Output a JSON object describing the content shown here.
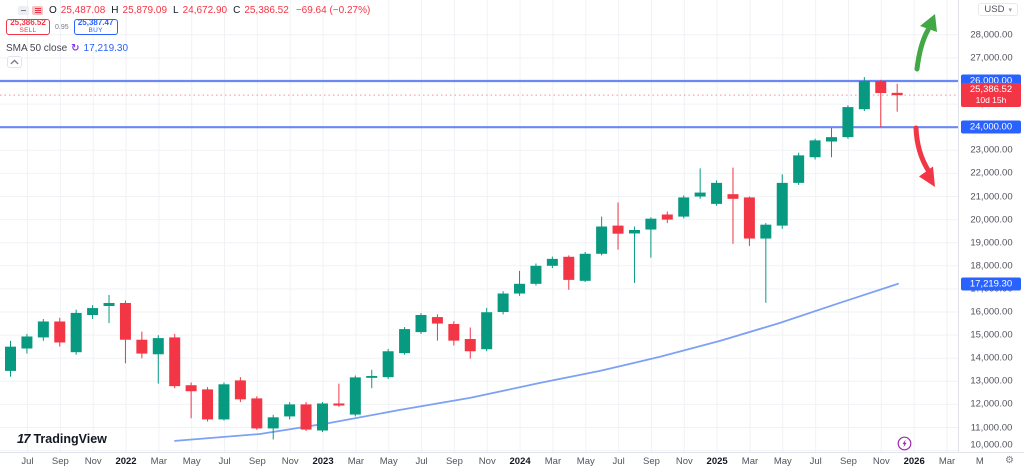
{
  "legend": {
    "ohlc": {
      "o_label": "O",
      "o": "25,487.08",
      "h_label": "H",
      "h": "25,879.09",
      "l_label": "L",
      "l": "24,672.90",
      "c_label": "C",
      "c": "25,386.52",
      "change": "−69.64 (−0.27%)"
    },
    "order_panel": {
      "sell_price": "25,386.52",
      "sell_label": "SELL",
      "spread": "0.95",
      "buy_price": "25,387.47",
      "buy_label": "BUY"
    },
    "indicator": {
      "name": "SMA 50 close",
      "value": "17,219.30"
    }
  },
  "price_axis": {
    "currency": "USD",
    "levels": [
      {
        "text": "26,000.00",
        "price": 26000,
        "bg": "#2962ff"
      },
      {
        "text": "25,386.52",
        "sub": "10d 15h",
        "price": 25386.52,
        "bg": "#f23645"
      },
      {
        "text": "24,000.00",
        "price": 24000,
        "bg": "#2962ff"
      },
      {
        "text": "17,219.30",
        "price": 17219.3,
        "bg": "#2962ff"
      }
    ]
  },
  "branding": {
    "logo_text": "TradingView"
  },
  "chart_data": {
    "type": "candlestick",
    "up_color": "#089981",
    "down_color": "#f23645",
    "grid": true,
    "y_ticks": [
      28000,
      27000,
      26000,
      25000,
      24000,
      23000,
      22000,
      21000,
      20000,
      19000,
      18000,
      17000,
      16000,
      15000,
      14000,
      13000,
      12000,
      11000,
      10000
    ],
    "x_labels": [
      {
        "t": "Jul"
      },
      {
        "t": "Sep"
      },
      {
        "t": "Nov"
      },
      {
        "t": "2022",
        "year": true
      },
      {
        "t": "Mar"
      },
      {
        "t": "May"
      },
      {
        "t": "Jul"
      },
      {
        "t": "Sep"
      },
      {
        "t": "Nov"
      },
      {
        "t": "2023",
        "year": true
      },
      {
        "t": "Mar"
      },
      {
        "t": "May"
      },
      {
        "t": "Jul"
      },
      {
        "t": "Sep"
      },
      {
        "t": "Nov"
      },
      {
        "t": "2024",
        "year": true
      },
      {
        "t": "Mar"
      },
      {
        "t": "May"
      },
      {
        "t": "Jul"
      },
      {
        "t": "Sep"
      },
      {
        "t": "Nov"
      },
      {
        "t": "2025",
        "year": true
      },
      {
        "t": "Mar"
      },
      {
        "t": "May"
      },
      {
        "t": "Jul"
      },
      {
        "t": "Sep"
      },
      {
        "t": "Nov"
      },
      {
        "t": "2026",
        "year": true
      },
      {
        "t": "Mar"
      },
      {
        "t": "M"
      }
    ],
    "candles": [
      [
        13450,
        14750,
        13200,
        14500
      ],
      [
        14420,
        15050,
        14200,
        14940
      ],
      [
        14900,
        15700,
        14750,
        15590
      ],
      [
        15590,
        15750,
        14500,
        14680
      ],
      [
        14260,
        16100,
        14150,
        15960
      ],
      [
        15870,
        16300,
        15700,
        16170
      ],
      [
        16260,
        16740,
        15520,
        16390
      ],
      [
        16390,
        16500,
        13780,
        14800
      ],
      [
        14800,
        15150,
        14000,
        14200
      ],
      [
        14170,
        15000,
        12900,
        14870
      ],
      [
        14900,
        15050,
        12700,
        12790
      ],
      [
        12830,
        12950,
        11400,
        12570
      ],
      [
        12650,
        12750,
        11260,
        11350
      ],
      [
        11350,
        12950,
        11300,
        12870
      ],
      [
        13040,
        13180,
        12100,
        12220
      ],
      [
        12260,
        12350,
        10900,
        10960
      ],
      [
        10960,
        11550,
        10480,
        11440
      ],
      [
        11480,
        12100,
        11350,
        12000
      ],
      [
        12000,
        12100,
        10850,
        10910
      ],
      [
        10870,
        12100,
        10800,
        12040
      ],
      [
        12040,
        12900,
        11900,
        11950
      ],
      [
        11560,
        13250,
        11480,
        13170
      ],
      [
        13150,
        13500,
        12700,
        13230
      ],
      [
        13180,
        14400,
        13100,
        14300
      ],
      [
        14220,
        15350,
        14150,
        15260
      ],
      [
        15130,
        15950,
        15050,
        15870
      ],
      [
        15780,
        15900,
        14760,
        15500
      ],
      [
        15480,
        15600,
        14550,
        14760
      ],
      [
        14830,
        15330,
        13980,
        14300
      ],
      [
        14390,
        16180,
        14300,
        15990
      ],
      [
        16000,
        16900,
        15900,
        16800
      ],
      [
        16800,
        17780,
        16700,
        17220
      ],
      [
        17220,
        18100,
        17150,
        18000
      ],
      [
        18000,
        18400,
        17900,
        18300
      ],
      [
        18390,
        18450,
        16960,
        17390
      ],
      [
        17350,
        18600,
        17300,
        18520
      ],
      [
        18520,
        20130,
        18450,
        19700
      ],
      [
        19740,
        20740,
        18700,
        19390
      ],
      [
        19400,
        19700,
        17260,
        19550
      ],
      [
        19570,
        20100,
        18350,
        20040
      ],
      [
        20220,
        20350,
        19850,
        20000
      ],
      [
        20130,
        21050,
        20050,
        20960
      ],
      [
        21000,
        22220,
        20900,
        21170
      ],
      [
        20680,
        21700,
        20600,
        21590
      ],
      [
        21100,
        22250,
        18950,
        20900
      ],
      [
        20960,
        21000,
        18860,
        19180
      ],
      [
        19180,
        19850,
        16400,
        19780
      ],
      [
        19740,
        21960,
        19600,
        21590
      ],
      [
        21590,
        22900,
        21500,
        22780
      ],
      [
        22700,
        23500,
        22600,
        23430
      ],
      [
        23380,
        23960,
        22700,
        23570
      ],
      [
        23570,
        24950,
        23500,
        24870
      ],
      [
        24780,
        26170,
        24700,
        26000
      ],
      [
        26000,
        26050,
        24000,
        25480
      ],
      [
        25487.08,
        25879.09,
        24672.9,
        25386.52
      ]
    ],
    "horizontal_lines": [
      26000,
      24000
    ],
    "last_price": 25386.52,
    "countdown": "10d 15h",
    "sma50": {
      "label": "SMA 50 close",
      "value": 17219.3,
      "color": "#7ea1f5",
      "points": [
        [
          175,
          10420
        ],
        [
          260,
          10720
        ],
        [
          330,
          11200
        ],
        [
          400,
          11760
        ],
        [
          470,
          12280
        ],
        [
          540,
          12930
        ],
        [
          600,
          13450
        ],
        [
          660,
          14060
        ],
        [
          720,
          14750
        ],
        [
          780,
          15530
        ],
        [
          840,
          16400
        ],
        [
          898,
          17219.3
        ]
      ]
    },
    "drawings": {
      "arrows": [
        {
          "dir": "up",
          "color": "#42a846"
        },
        {
          "dir": "down",
          "color": "#f23645"
        }
      ]
    }
  }
}
